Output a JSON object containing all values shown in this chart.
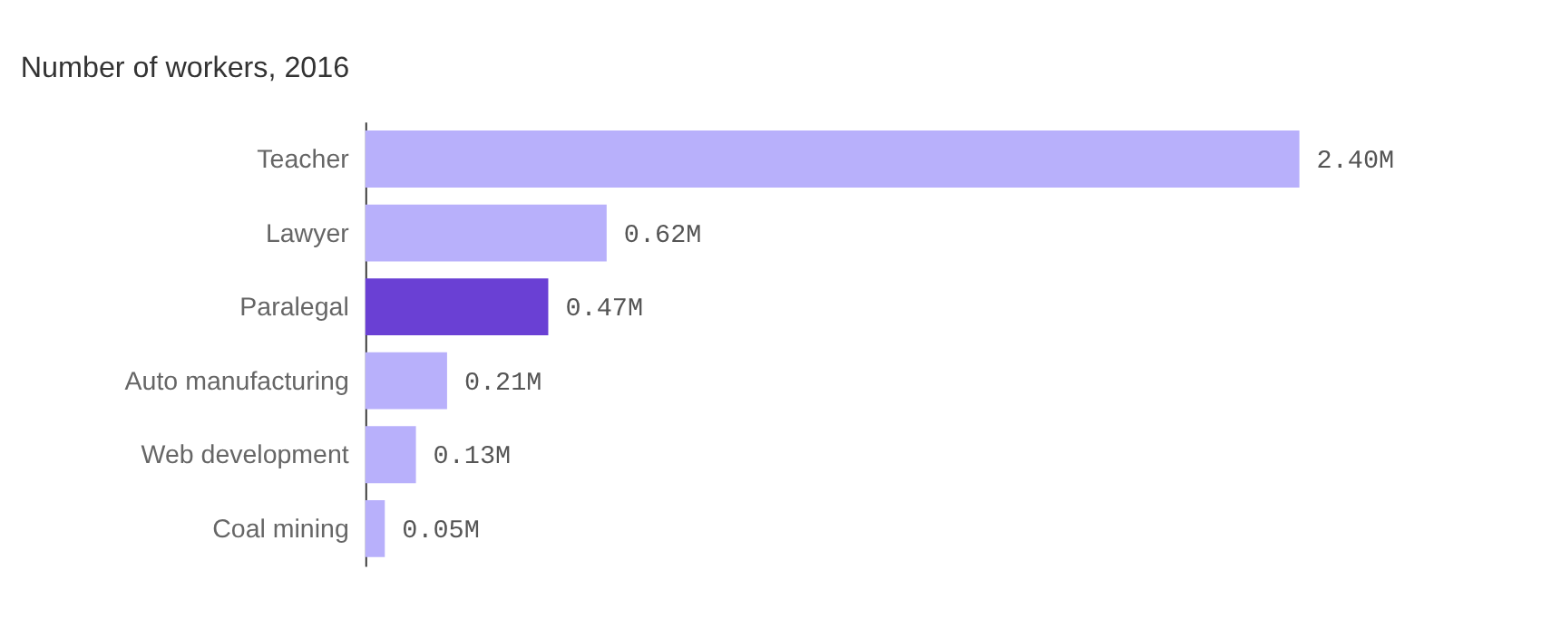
{
  "chart_data": {
    "type": "bar",
    "orientation": "horizontal",
    "title": "Number of workers, 2016",
    "categories": [
      "Teacher",
      "Lawyer",
      "Paralegal",
      "Auto manufacturing",
      "Web development",
      "Coal mining"
    ],
    "values": [
      2.4,
      0.62,
      0.47,
      0.21,
      0.13,
      0.05
    ],
    "colors": [
      "#b8b0fb",
      "#b8b0fb",
      "#6a40d4",
      "#b8b0fb",
      "#b8b0fb",
      "#b8b0fb"
    ],
    "value_labels": [
      "2.40M",
      "0.62M",
      "0.47M",
      "0.21M",
      "0.13M",
      "0.05M"
    ]
  }
}
